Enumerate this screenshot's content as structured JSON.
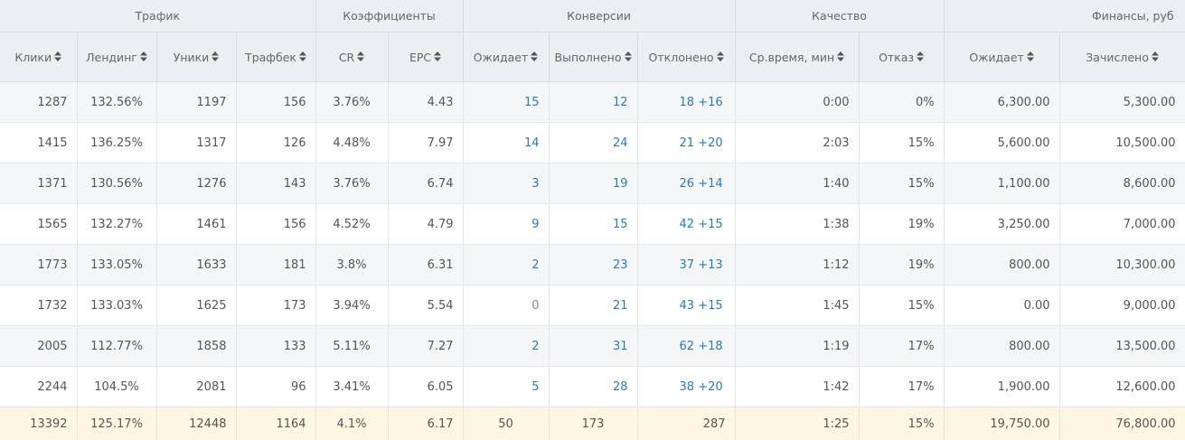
{
  "groups": {
    "traffic": "Трафик",
    "coefficients": "Коэффициенты",
    "conversions": "Конверсии",
    "quality": "Качество",
    "finance": "Финансы, руб"
  },
  "columns": {
    "clicks": "Клики",
    "landing": "Лендинг",
    "uniques": "Уники",
    "trafficback": "Трафбек",
    "cr": "CR",
    "epc": "EPC",
    "conv_pending": "Ожидает",
    "conv_done": "Выполнено",
    "conv_rejected": "Отклонено",
    "avg_time": "Ср.время, мин",
    "bounce": "Отказ",
    "fin_pending": "Ожидает",
    "fin_credited": "Зачислено"
  },
  "sort_icon": "sort-icon",
  "rows": [
    {
      "clicks": "1287",
      "landing": "132.56%",
      "uniques": "1197",
      "trafficback": "156",
      "cr": "3.76%",
      "epc": "4.43",
      "pending": "15",
      "done": "12",
      "rejected": "18",
      "rejected_extra": "+16",
      "avg_time": "0:00",
      "bounce": "0%",
      "fin_pending": "6,300.00",
      "fin_credited": "5,300.00"
    },
    {
      "clicks": "1415",
      "landing": "136.25%",
      "uniques": "1317",
      "trafficback": "126",
      "cr": "4.48%",
      "epc": "7.97",
      "pending": "14",
      "done": "24",
      "rejected": "21",
      "rejected_extra": "+20",
      "avg_time": "2:03",
      "bounce": "15%",
      "fin_pending": "5,600.00",
      "fin_credited": "10,500.00"
    },
    {
      "clicks": "1371",
      "landing": "130.56%",
      "uniques": "1276",
      "trafficback": "143",
      "cr": "3.76%",
      "epc": "6.74",
      "pending": "3",
      "done": "19",
      "rejected": "26",
      "rejected_extra": "+14",
      "avg_time": "1:40",
      "bounce": "15%",
      "fin_pending": "1,100.00",
      "fin_credited": "8,600.00"
    },
    {
      "clicks": "1565",
      "landing": "132.27%",
      "uniques": "1461",
      "trafficback": "156",
      "cr": "4.52%",
      "epc": "4.79",
      "pending": "9",
      "done": "15",
      "rejected": "42",
      "rejected_extra": "+15",
      "avg_time": "1:38",
      "bounce": "19%",
      "fin_pending": "3,250.00",
      "fin_credited": "7,000.00"
    },
    {
      "clicks": "1773",
      "landing": "133.05%",
      "uniques": "1633",
      "trafficback": "181",
      "cr": "3.8%",
      "epc": "6.31",
      "pending": "2",
      "done": "23",
      "rejected": "37",
      "rejected_extra": "+13",
      "avg_time": "1:12",
      "bounce": "19%",
      "fin_pending": "800.00",
      "fin_credited": "10,300.00"
    },
    {
      "clicks": "1732",
      "landing": "133.03%",
      "uniques": "1625",
      "trafficback": "173",
      "cr": "3.94%",
      "epc": "5.54",
      "pending": "0",
      "done": "21",
      "rejected": "43",
      "rejected_extra": "+15",
      "avg_time": "1:45",
      "bounce": "15%",
      "fin_pending": "0.00",
      "fin_credited": "9,000.00"
    },
    {
      "clicks": "2005",
      "landing": "112.77%",
      "uniques": "1858",
      "trafficback": "133",
      "cr": "5.11%",
      "epc": "7.27",
      "pending": "2",
      "done": "31",
      "rejected": "62",
      "rejected_extra": "+18",
      "avg_time": "1:19",
      "bounce": "17%",
      "fin_pending": "800.00",
      "fin_credited": "13,500.00"
    },
    {
      "clicks": "2244",
      "landing": "104.5%",
      "uniques": "2081",
      "trafficback": "96",
      "cr": "3.41%",
      "epc": "6.05",
      "pending": "5",
      "done": "28",
      "rejected": "38",
      "rejected_extra": "+20",
      "avg_time": "1:42",
      "bounce": "17%",
      "fin_pending": "1,900.00",
      "fin_credited": "12,600.00"
    }
  ],
  "totals": {
    "clicks": "13392",
    "landing": "125.17%",
    "uniques": "12448",
    "trafficback": "1164",
    "cr": "4.1%",
    "epc": "6.17",
    "pending": "50",
    "done": "173",
    "rejected": "287",
    "avg_time": "1:25",
    "bounce": "15%",
    "fin_pending": "19,750.00",
    "fin_credited": "76,800.00"
  },
  "colors": {
    "header_bg": "#ebeef3",
    "row_alt_bg": "#f5f6f8",
    "total_bg": "#fdf6e3",
    "link": "#2b7bb9"
  }
}
